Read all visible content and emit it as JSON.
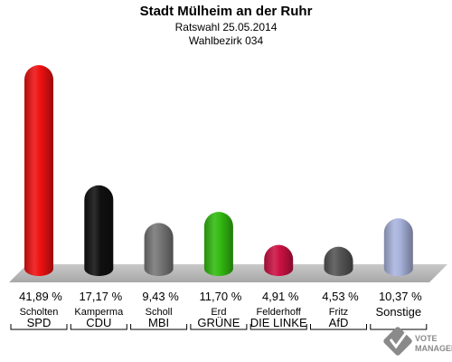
{
  "header": {
    "title": "Stadt Mülheim an der Ruhr",
    "subtitle": "Ratswahl 25.05.2014",
    "district": "Wahlbezirk 034"
  },
  "logo_text": "VOTE MANAGER",
  "chart_data": {
    "type": "bar",
    "title": "Stadt Mülheim an der Ruhr",
    "subtitle": "Ratswahl 25.05.2014 · Wahlbezirk 034",
    "unit": "%",
    "ylim": [
      0,
      45
    ],
    "grid": false,
    "categories": [
      "SPD",
      "CDU",
      "MBI",
      "GRÜNE",
      "DIE LINKE",
      "AfD",
      "Sonstige"
    ],
    "candidates": [
      "Scholten",
      "Kamperma",
      "Scholl",
      "Erd",
      "Felderhoff",
      "Fritz",
      ""
    ],
    "values": [
      41.89,
      17.17,
      9.43,
      11.7,
      4.91,
      4.53,
      10.37
    ],
    "value_labels": [
      "41,89 %",
      "17,17 %",
      "9,43 %",
      "11,70 %",
      "4,91 %",
      "4,53 %",
      "10,37 %"
    ],
    "colors": [
      "#ee1111",
      "#111111",
      "#777777",
      "#33bb11",
      "#cc1144",
      "#555555",
      "#a9b4dd"
    ]
  }
}
